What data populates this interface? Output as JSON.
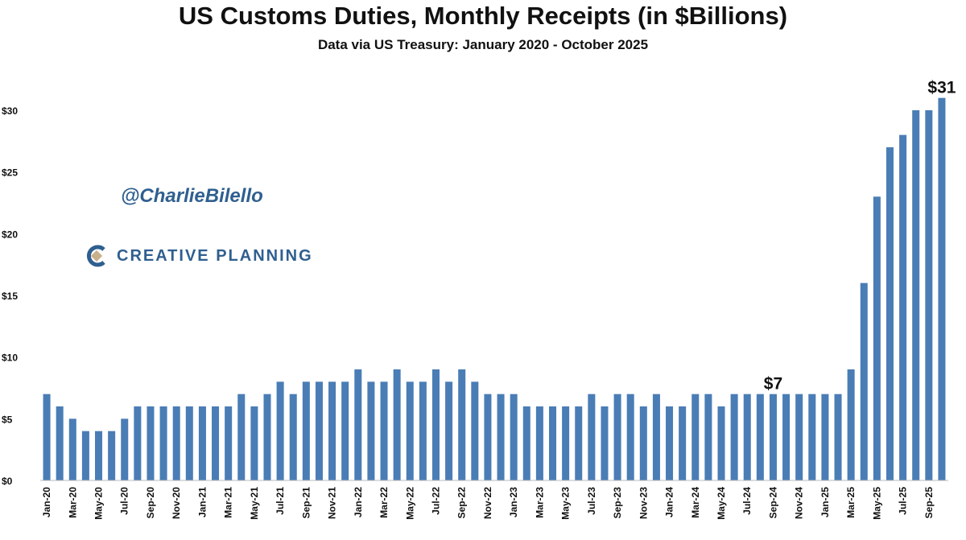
{
  "chart_data": {
    "type": "bar",
    "title": "US Customs Duties, Monthly Receipts (in $Billions)",
    "subtitle": "Data via US Treasury: January 2020 - October 2025",
    "color": "#4a7db5",
    "ylim": [
      0,
      31
    ],
    "yticks": [
      0,
      5,
      10,
      15,
      20,
      25,
      30
    ],
    "ytick_labels": [
      "$0",
      "$5",
      "$10",
      "$15",
      "$20",
      "$25",
      "$30"
    ],
    "categories": [
      "Jan-20",
      "Feb-20",
      "Mar-20",
      "Apr-20",
      "May-20",
      "Jun-20",
      "Jul-20",
      "Aug-20",
      "Sep-20",
      "Oct-20",
      "Nov-20",
      "Dec-20",
      "Jan-21",
      "Feb-21",
      "Mar-21",
      "Apr-21",
      "May-21",
      "Jun-21",
      "Jul-21",
      "Aug-21",
      "Sep-21",
      "Oct-21",
      "Nov-21",
      "Dec-21",
      "Jan-22",
      "Feb-22",
      "Mar-22",
      "Apr-22",
      "May-22",
      "Jun-22",
      "Jul-22",
      "Aug-22",
      "Sep-22",
      "Oct-22",
      "Nov-22",
      "Dec-22",
      "Jan-23",
      "Feb-23",
      "Mar-23",
      "Apr-23",
      "May-23",
      "Jun-23",
      "Jul-23",
      "Aug-23",
      "Sep-23",
      "Oct-23",
      "Nov-23",
      "Dec-23",
      "Jan-24",
      "Feb-24",
      "Mar-24",
      "Apr-24",
      "May-24",
      "Jun-24",
      "Jul-24",
      "Aug-24",
      "Sep-24",
      "Oct-24",
      "Nov-24",
      "Dec-24",
      "Jan-25",
      "Feb-25",
      "Mar-25",
      "Apr-25",
      "May-25",
      "Jun-25",
      "Jul-25",
      "Aug-25",
      "Sep-25",
      "Oct-25"
    ],
    "values": [
      7,
      6,
      5,
      4,
      4,
      4,
      5,
      6,
      6,
      6,
      6,
      6,
      6,
      6,
      6,
      7,
      6,
      7,
      8,
      7,
      8,
      8,
      8,
      8,
      9,
      8,
      8,
      9,
      8,
      8,
      9,
      8,
      9,
      8,
      7,
      7,
      7,
      6,
      6,
      6,
      6,
      6,
      7,
      6,
      7,
      7,
      6,
      7,
      6,
      6,
      7,
      7,
      6,
      7,
      7,
      7,
      7,
      7,
      7,
      7,
      7,
      7,
      9,
      16,
      23,
      27,
      28,
      30,
      30,
      31
    ],
    "visible_tick_labels": [
      "Jan-20",
      "Mar-20",
      "May-20",
      "Jul-20",
      "Sep-20",
      "Nov-20",
      "Jan-21",
      "Mar-21",
      "May-21",
      "Jul-21",
      "Sep-21",
      "Nov-21",
      "Jan-22",
      "Mar-22",
      "May-22",
      "Jul-22",
      "Sep-22",
      "Nov-22",
      "Jan-23",
      "Mar-23",
      "May-23",
      "Jul-23",
      "Sep-23",
      "Nov-23",
      "Jan-24",
      "Mar-24",
      "May-24",
      "Jul-24",
      "Sep-24",
      "Nov-24",
      "Jan-25",
      "Mar-25",
      "May-25",
      "Jul-25",
      "Sep-25"
    ],
    "annotations": [
      {
        "category": "Sep-24",
        "text": "$7"
      },
      {
        "category": "Oct-25",
        "text": "$31"
      }
    ],
    "grid": false,
    "legend": "none"
  },
  "watermark": {
    "handle": "@CharlieBilello",
    "logo_text": "CREATIVE PLANNING",
    "logo_icon": "creative-planning-c-icon",
    "brand_color": "#2f5f8f",
    "diamond_color": "#c8b08a"
  }
}
